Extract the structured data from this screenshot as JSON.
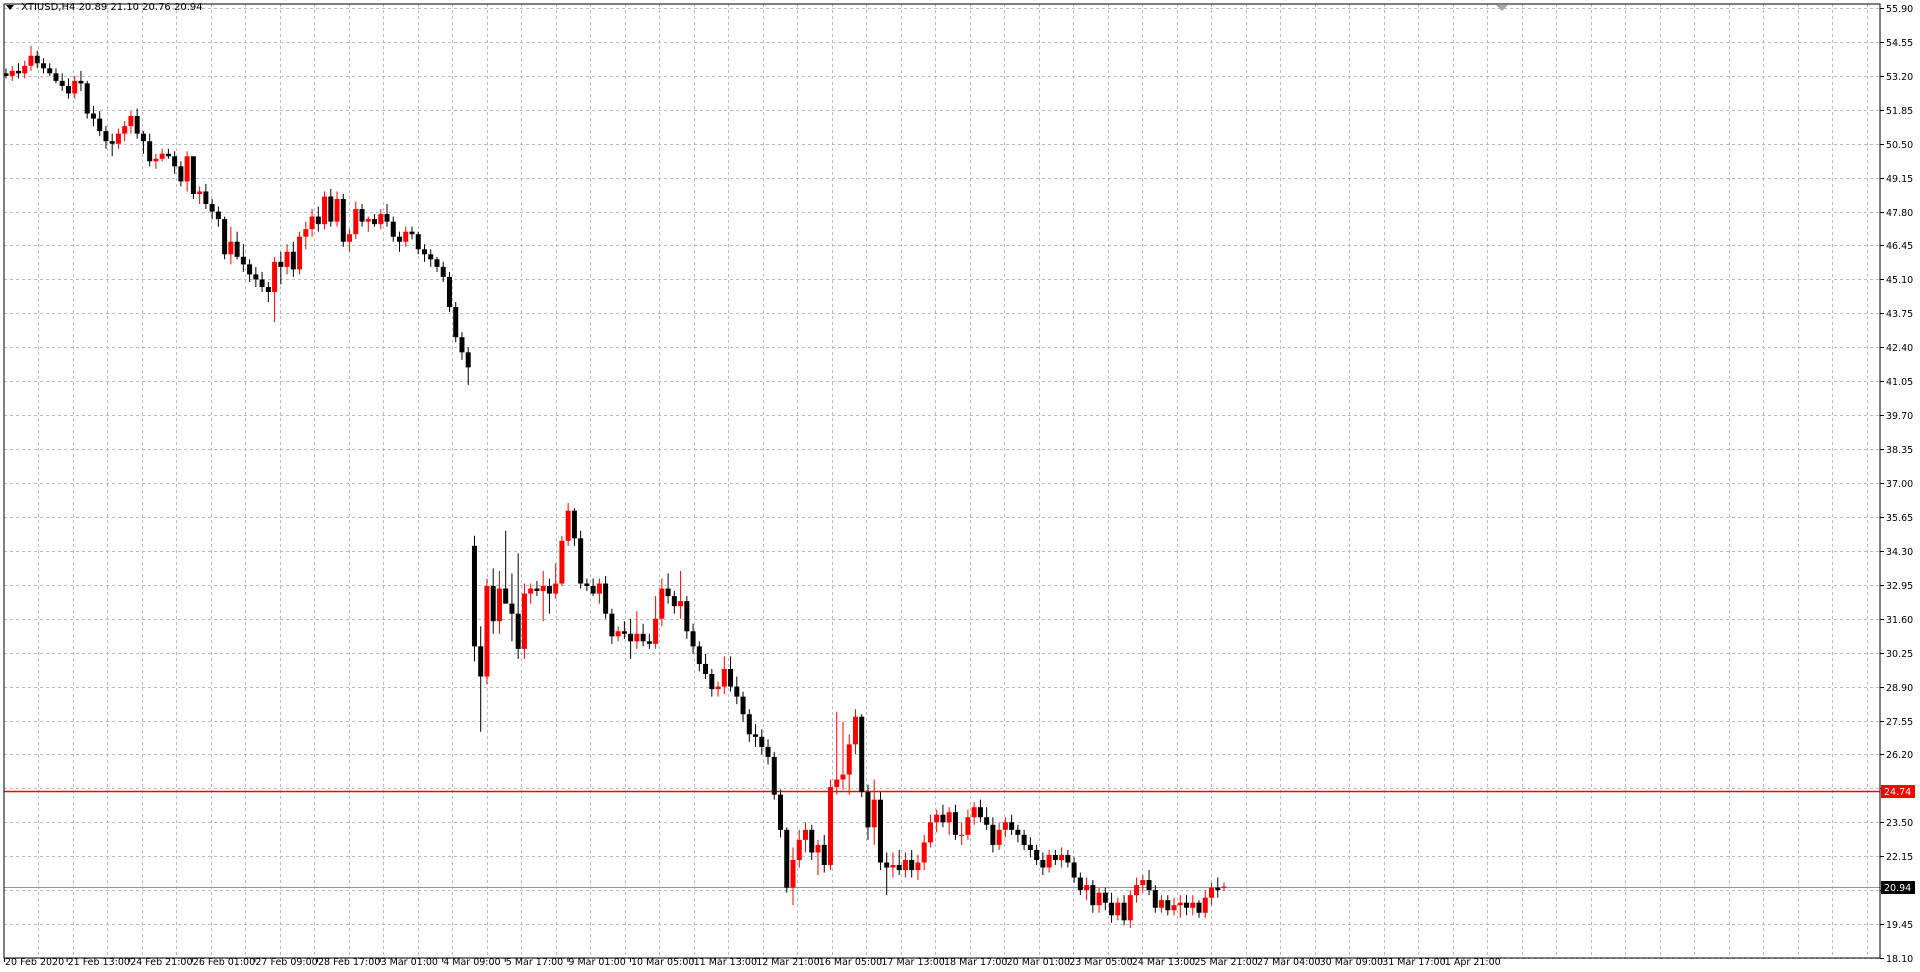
{
  "header": {
    "symbol": "XTIUSD,H4",
    "ohlc": "20.89 21.10 20.76 20.94"
  },
  "colors": {
    "background": "#ffffff",
    "grid": "#b8bcc4",
    "bull_candle": "#ff0000",
    "bear_candle": "#000000",
    "level_line": "#ff0000",
    "bid_line": "#8a9aac",
    "level_tag_bg": "#ff0000",
    "bid_tag_bg": "#000000"
  },
  "chart_data": {
    "type": "candlestick",
    "symbol": "XTIUSD",
    "timeframe": "H4",
    "ylim": [
      18.1,
      55.9
    ],
    "grid": true,
    "y_ticks": [
      "55.90",
      "54.55",
      "53.20",
      "51.85",
      "50.50",
      "49.15",
      "47.80",
      "46.45",
      "45.10",
      "43.75",
      "42.40",
      "41.05",
      "39.70",
      "38.35",
      "37.00",
      "35.65",
      "34.30",
      "32.95",
      "31.60",
      "30.25",
      "28.90",
      "27.55",
      "26.20",
      "24.85",
      "23.50",
      "22.15",
      "20.80",
      "19.45",
      "18.10"
    ],
    "x_labels": [
      "20 Feb 2020",
      "21 Feb 13:00",
      "24 Feb 21:00",
      "26 Feb 01:00",
      "27 Feb 09:00",
      "28 Feb 17:00",
      "3 Mar 01:00",
      "4 Mar 09:00",
      "5 Mar 17:00",
      "9 Mar 01:00",
      "10 Mar 05:00",
      "11 Mar 13:00",
      "12 Mar 21:00",
      "16 Mar 05:00",
      "17 Mar 13:00",
      "18 Mar 17:00",
      "20 Mar 01:00",
      "23 Mar 05:00",
      "24 Mar 13:00",
      "25 Mar 21:00",
      "27 Mar 04:00",
      "30 Mar 09:00",
      "31 Mar 17:00",
      "1 Apr 21:00"
    ],
    "level_line": {
      "value": 24.74,
      "label": "24.74"
    },
    "bid_line": {
      "value": 20.94,
      "label": "20.94"
    },
    "candles": [
      [
        53.3,
        53.5,
        53.1,
        53.2
      ],
      [
        53.2,
        53.6,
        53.0,
        53.4
      ],
      [
        53.4,
        53.7,
        53.1,
        53.3
      ],
      [
        53.3,
        53.8,
        53.1,
        53.6
      ],
      [
        53.6,
        54.4,
        53.4,
        54.0
      ],
      [
        54.0,
        54.2,
        53.5,
        53.7
      ],
      [
        53.7,
        53.9,
        53.3,
        53.5
      ],
      [
        53.5,
        53.7,
        53.2,
        53.3
      ],
      [
        53.3,
        53.5,
        52.9,
        53.0
      ],
      [
        53.0,
        53.3,
        52.6,
        52.8
      ],
      [
        52.8,
        53.1,
        52.3,
        52.5
      ],
      [
        52.5,
        53.2,
        52.3,
        53.0
      ],
      [
        53.0,
        53.4,
        52.6,
        52.9
      ],
      [
        52.9,
        53.0,
        51.5,
        51.7
      ],
      [
        51.7,
        52.0,
        51.2,
        51.5
      ],
      [
        51.5,
        51.8,
        50.8,
        51.0
      ],
      [
        51.0,
        51.2,
        50.3,
        50.6
      ],
      [
        50.6,
        50.9,
        50.0,
        50.5
      ],
      [
        50.5,
        51.1,
        50.3,
        50.9
      ],
      [
        50.9,
        51.4,
        50.6,
        51.2
      ],
      [
        51.2,
        51.8,
        50.9,
        51.6
      ],
      [
        51.6,
        51.9,
        50.7,
        50.9
      ],
      [
        50.9,
        51.0,
        50.1,
        50.6
      ],
      [
        50.6,
        50.9,
        49.6,
        49.8
      ],
      [
        49.8,
        50.1,
        49.5,
        49.9
      ],
      [
        49.9,
        50.3,
        49.8,
        50.1
      ],
      [
        50.1,
        50.3,
        49.9,
        50.0
      ],
      [
        50.0,
        50.2,
        49.3,
        49.6
      ],
      [
        49.6,
        49.8,
        48.8,
        49.0
      ],
      [
        49.0,
        50.2,
        48.6,
        50.0
      ],
      [
        50.0,
        50.0,
        48.3,
        48.5
      ],
      [
        48.5,
        48.8,
        48.1,
        48.6
      ],
      [
        48.6,
        48.9,
        47.9,
        48.1
      ],
      [
        48.1,
        48.3,
        47.5,
        47.8
      ],
      [
        47.8,
        48.0,
        47.2,
        47.5
      ],
      [
        47.5,
        47.6,
        45.9,
        46.1
      ],
      [
        46.1,
        47.2,
        45.7,
        46.6
      ],
      [
        46.6,
        47.0,
        45.9,
        46.0
      ],
      [
        46.0,
        46.5,
        45.4,
        45.7
      ],
      [
        45.7,
        45.9,
        45.0,
        45.3
      ],
      [
        45.3,
        45.6,
        44.8,
        45.1
      ],
      [
        45.1,
        45.4,
        44.6,
        44.8
      ],
      [
        44.8,
        45.0,
        44.2,
        44.6
      ],
      [
        44.6,
        46.0,
        43.4,
        45.8
      ],
      [
        45.8,
        46.2,
        44.9,
        45.6
      ],
      [
        45.6,
        46.5,
        45.3,
        46.2
      ],
      [
        46.2,
        46.6,
        45.2,
        45.5
      ],
      [
        45.5,
        47.0,
        45.3,
        46.8
      ],
      [
        46.8,
        47.4,
        46.3,
        47.1
      ],
      [
        47.1,
        47.9,
        46.8,
        47.6
      ],
      [
        47.6,
        48.0,
        47.0,
        47.3
      ],
      [
        47.3,
        48.6,
        47.1,
        48.4
      ],
      [
        48.4,
        48.7,
        47.2,
        47.4
      ],
      [
        47.4,
        48.6,
        47.2,
        48.3
      ],
      [
        48.3,
        48.5,
        46.4,
        46.6
      ],
      [
        46.6,
        47.1,
        46.2,
        46.9
      ],
      [
        46.9,
        48.2,
        46.7,
        47.9
      ],
      [
        47.9,
        48.1,
        47.2,
        47.4
      ],
      [
        47.4,
        47.6,
        47.0,
        47.5
      ],
      [
        47.5,
        47.7,
        47.2,
        47.3
      ],
      [
        47.3,
        47.9,
        47.1,
        47.7
      ],
      [
        47.7,
        48.1,
        47.2,
        47.4
      ],
      [
        47.4,
        47.6,
        46.6,
        46.8
      ],
      [
        46.8,
        47.0,
        46.2,
        46.6
      ],
      [
        46.6,
        47.2,
        46.4,
        47.0
      ],
      [
        47.0,
        47.2,
        46.7,
        46.9
      ],
      [
        46.9,
        47.0,
        46.1,
        46.3
      ],
      [
        46.3,
        46.5,
        45.8,
        46.1
      ],
      [
        46.1,
        46.3,
        45.6,
        45.9
      ],
      [
        45.9,
        46.0,
        45.4,
        45.6
      ],
      [
        45.6,
        45.8,
        45.0,
        45.2
      ],
      [
        45.2,
        45.4,
        43.8,
        44.0
      ],
      [
        44.0,
        44.2,
        42.6,
        42.8
      ],
      [
        42.8,
        43.0,
        41.9,
        42.2
      ],
      [
        42.2,
        42.4,
        40.9,
        41.6
      ],
      [
        34.5,
        34.9,
        29.9,
        30.5
      ],
      [
        30.5,
        31.3,
        27.1,
        29.3
      ],
      [
        29.3,
        33.2,
        29.0,
        32.9
      ],
      [
        32.9,
        33.6,
        31.0,
        31.5
      ],
      [
        31.5,
        33.5,
        31.0,
        32.8
      ],
      [
        32.8,
        35.1,
        32.2,
        32.2
      ],
      [
        32.2,
        33.4,
        30.7,
        31.8
      ],
      [
        31.8,
        34.2,
        30.0,
        30.4
      ],
      [
        30.4,
        33.0,
        30.0,
        32.6
      ],
      [
        32.6,
        33.0,
        32.2,
        32.8
      ],
      [
        32.8,
        33.1,
        32.5,
        32.7
      ],
      [
        32.7,
        33.5,
        31.5,
        32.9
      ],
      [
        32.9,
        33.2,
        31.8,
        32.6
      ],
      [
        32.6,
        33.8,
        32.4,
        33.0
      ],
      [
        33.0,
        34.9,
        32.9,
        34.7
      ],
      [
        34.7,
        36.2,
        34.5,
        35.9
      ],
      [
        35.9,
        36.0,
        34.5,
        34.8
      ],
      [
        34.8,
        35.1,
        32.8,
        33.0
      ],
      [
        33.0,
        33.2,
        32.7,
        32.9
      ],
      [
        32.9,
        33.2,
        32.5,
        32.6
      ],
      [
        32.6,
        33.2,
        32.2,
        33.0
      ],
      [
        33.0,
        33.3,
        31.6,
        31.8
      ],
      [
        31.8,
        32.0,
        30.6,
        30.9
      ],
      [
        30.9,
        31.3,
        30.7,
        31.1
      ],
      [
        31.1,
        31.5,
        30.8,
        31.0
      ],
      [
        31.0,
        31.6,
        30.0,
        30.7
      ],
      [
        30.7,
        31.9,
        30.4,
        31.0
      ],
      [
        31.0,
        31.4,
        30.5,
        30.7
      ],
      [
        30.7,
        31.0,
        30.4,
        30.6
      ],
      [
        30.6,
        32.5,
        30.4,
        31.6
      ],
      [
        31.6,
        33.2,
        31.3,
        32.8
      ],
      [
        32.8,
        33.4,
        32.2,
        32.5
      ],
      [
        32.5,
        32.7,
        31.8,
        32.1
      ],
      [
        32.1,
        33.5,
        31.6,
        32.3
      ],
      [
        32.3,
        32.5,
        30.8,
        31.1
      ],
      [
        31.1,
        31.4,
        30.2,
        30.5
      ],
      [
        30.5,
        30.7,
        29.5,
        29.8
      ],
      [
        29.8,
        30.2,
        29.2,
        29.4
      ],
      [
        29.4,
        29.6,
        28.5,
        28.8
      ],
      [
        28.8,
        29.1,
        28.5,
        28.9
      ],
      [
        28.9,
        30.1,
        28.6,
        29.6
      ],
      [
        29.6,
        30.1,
        28.7,
        28.9
      ],
      [
        28.9,
        29.3,
        28.2,
        28.5
      ],
      [
        28.5,
        28.7,
        27.5,
        27.8
      ],
      [
        27.8,
        28.0,
        26.7,
        27.0
      ],
      [
        27.0,
        27.4,
        26.5,
        26.9
      ],
      [
        26.9,
        27.2,
        26.2,
        26.5
      ],
      [
        26.5,
        26.8,
        25.8,
        26.1
      ],
      [
        26.1,
        26.3,
        24.4,
        24.6
      ],
      [
        24.6,
        24.8,
        22.9,
        23.2
      ],
      [
        23.2,
        23.3,
        20.7,
        20.9
      ],
      [
        20.9,
        22.5,
        20.2,
        22.0
      ],
      [
        22.0,
        23.2,
        21.7,
        22.8
      ],
      [
        22.8,
        23.5,
        22.3,
        23.2
      ],
      [
        23.2,
        23.4,
        22.0,
        22.3
      ],
      [
        22.3,
        22.8,
        21.4,
        22.6
      ],
      [
        22.6,
        23.0,
        21.5,
        21.8
      ],
      [
        21.8,
        25.2,
        21.6,
        24.9
      ],
      [
        24.9,
        27.9,
        24.6,
        25.2
      ],
      [
        25.2,
        27.5,
        24.8,
        25.4
      ],
      [
        25.4,
        27.0,
        24.6,
        26.6
      ],
      [
        26.6,
        28.0,
        26.2,
        27.7
      ],
      [
        27.7,
        27.8,
        24.5,
        24.7
      ],
      [
        24.7,
        25.0,
        22.8,
        23.3
      ],
      [
        23.3,
        25.2,
        22.6,
        24.4
      ],
      [
        24.4,
        24.7,
        21.6,
        21.9
      ],
      [
        21.9,
        22.3,
        20.6,
        21.7
      ],
      [
        21.7,
        22.3,
        21.3,
        21.8
      ],
      [
        21.8,
        22.4,
        21.4,
        21.6
      ],
      [
        21.6,
        22.3,
        21.3,
        22.0
      ],
      [
        22.0,
        22.4,
        21.3,
        21.6
      ],
      [
        21.6,
        22.2,
        21.2,
        21.9
      ],
      [
        21.9,
        23.0,
        21.6,
        22.7
      ],
      [
        22.7,
        23.8,
        22.5,
        23.5
      ],
      [
        23.5,
        24.0,
        23.1,
        23.8
      ],
      [
        23.8,
        24.2,
        23.3,
        23.5
      ],
      [
        23.5,
        24.1,
        23.0,
        23.9
      ],
      [
        23.9,
        24.2,
        22.8,
        23.0
      ],
      [
        23.0,
        23.5,
        22.6,
        23.0
      ],
      [
        23.0,
        24.0,
        22.8,
        23.7
      ],
      [
        23.7,
        24.3,
        23.4,
        24.1
      ],
      [
        24.1,
        24.4,
        23.5,
        23.7
      ],
      [
        23.7,
        24.1,
        23.2,
        23.4
      ],
      [
        23.4,
        23.7,
        22.3,
        22.6
      ],
      [
        22.6,
        23.5,
        22.4,
        23.2
      ],
      [
        23.2,
        23.7,
        22.9,
        23.5
      ],
      [
        23.5,
        23.8,
        23.0,
        23.2
      ],
      [
        23.2,
        23.4,
        22.7,
        23.0
      ],
      [
        23.0,
        23.2,
        22.4,
        22.6
      ],
      [
        22.6,
        22.9,
        22.1,
        22.4
      ],
      [
        22.4,
        22.6,
        21.8,
        22.0
      ],
      [
        22.0,
        22.3,
        21.4,
        21.7
      ],
      [
        21.7,
        22.4,
        21.5,
        22.2
      ],
      [
        22.2,
        22.4,
        21.8,
        22.0
      ],
      [
        22.0,
        22.5,
        21.7,
        22.2
      ],
      [
        22.2,
        22.4,
        21.7,
        21.9
      ],
      [
        21.9,
        22.1,
        21.1,
        21.3
      ],
      [
        21.3,
        21.5,
        20.6,
        20.8
      ],
      [
        20.8,
        21.3,
        20.4,
        21.0
      ],
      [
        21.0,
        21.2,
        19.9,
        20.2
      ],
      [
        20.2,
        20.9,
        19.9,
        20.7
      ],
      [
        20.7,
        20.9,
        20.0,
        20.3
      ],
      [
        20.3,
        20.7,
        19.5,
        19.8
      ],
      [
        19.8,
        20.5,
        19.6,
        20.3
      ],
      [
        20.3,
        20.6,
        19.4,
        19.6
      ],
      [
        19.6,
        20.8,
        19.3,
        20.6
      ],
      [
        20.6,
        21.3,
        20.3,
        21.0
      ],
      [
        21.0,
        21.4,
        20.7,
        21.2
      ],
      [
        21.2,
        21.6,
        20.6,
        20.8
      ],
      [
        20.8,
        21.0,
        19.9,
        20.1
      ],
      [
        20.1,
        20.6,
        19.9,
        20.4
      ],
      [
        20.4,
        20.6,
        19.8,
        20.0
      ],
      [
        20.0,
        20.5,
        19.8,
        20.2
      ],
      [
        20.2,
        20.6,
        19.7,
        20.3
      ],
      [
        20.3,
        20.6,
        19.8,
        20.1
      ],
      [
        20.1,
        20.6,
        19.8,
        20.3
      ],
      [
        20.3,
        20.4,
        19.7,
        19.9
      ],
      [
        19.9,
        20.8,
        19.7,
        20.5
      ],
      [
        20.5,
        21.1,
        20.2,
        20.9
      ],
      [
        20.9,
        21.3,
        20.5,
        20.8
      ],
      [
        20.89,
        21.1,
        20.76,
        20.94
      ]
    ]
  }
}
